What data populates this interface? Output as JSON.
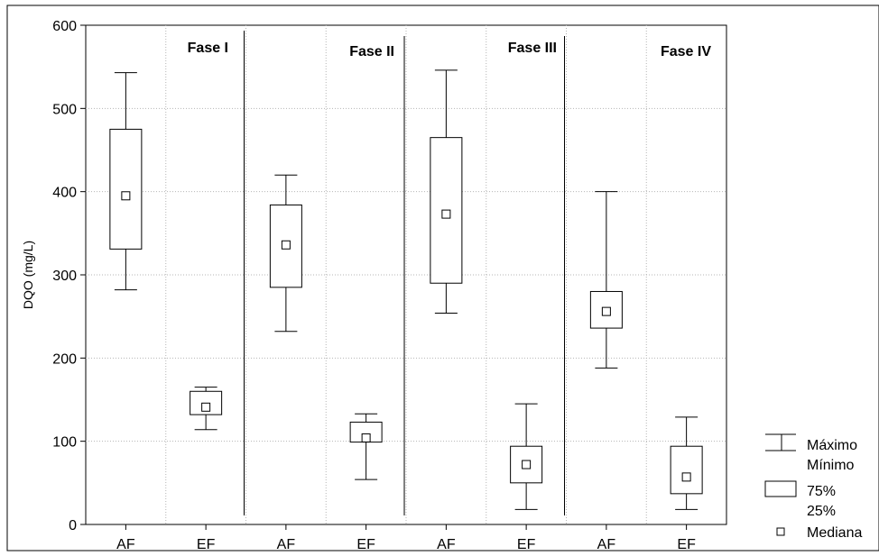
{
  "chart_data": {
    "type": "boxplot",
    "ylabel": "DQO (mg/L)",
    "ylim": [
      0,
      600
    ],
    "yticks": [
      0,
      100,
      200,
      300,
      400,
      500,
      600
    ],
    "categories": [
      "AF",
      "EF",
      "AF",
      "EF",
      "AF",
      "EF",
      "AF",
      "EF"
    ],
    "phases": [
      "Fase I",
      "Fase II",
      "Fase III",
      "Fase IV"
    ],
    "grid": true,
    "legend": {
      "placement": "bottom-right",
      "items": [
        "Máximo",
        "Mínimo",
        "75%",
        "25%",
        "Mediana"
      ]
    },
    "boxes": [
      {
        "phase": "Fase I",
        "category": "AF",
        "min": 282,
        "q1": 331,
        "median": 395,
        "q3": 475,
        "max": 543
      },
      {
        "phase": "Fase I",
        "category": "EF",
        "min": 114,
        "q1": 132,
        "median": 141,
        "q3": 160,
        "max": 165
      },
      {
        "phase": "Fase II",
        "category": "AF",
        "min": 232,
        "q1": 285,
        "median": 336,
        "q3": 384,
        "max": 420
      },
      {
        "phase": "Fase II",
        "category": "EF",
        "min": 54,
        "q1": 99,
        "median": 104,
        "q3": 123,
        "max": 133
      },
      {
        "phase": "Fase III",
        "category": "AF",
        "min": 254,
        "q1": 290,
        "median": 373,
        "q3": 465,
        "max": 546
      },
      {
        "phase": "Fase III",
        "category": "EF",
        "min": 18,
        "q1": 50,
        "median": 72,
        "q3": 94,
        "max": 145
      },
      {
        "phase": "Fase IV",
        "category": "AF",
        "min": 188,
        "q1": 236,
        "median": 256,
        "q3": 280,
        "max": 400
      },
      {
        "phase": "Fase IV",
        "category": "EF",
        "min": 18,
        "q1": 37,
        "median": 57,
        "q3": 94,
        "max": 129
      }
    ]
  }
}
